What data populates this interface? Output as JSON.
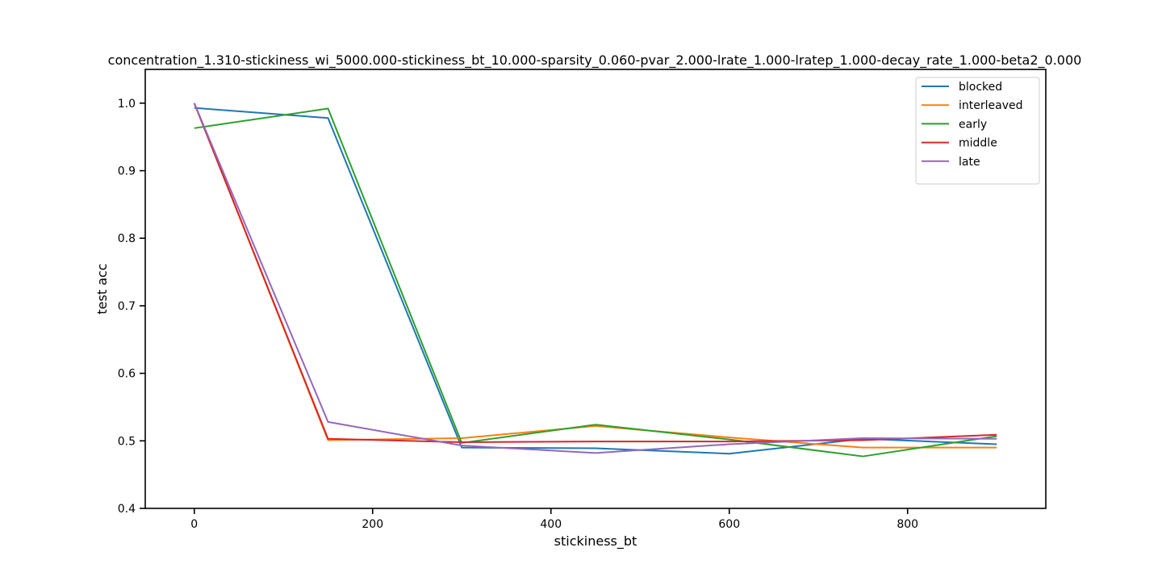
{
  "chart_data": {
    "type": "line",
    "title": "concentration_1.310-stickiness_wi_5000.000-stickiness_bt_10.000-sparsity_0.060-pvar_2.000-lrate_1.000-lratep_1.000-decay_rate_1.000-beta2_0.000",
    "xlabel": "stickiness_bt",
    "ylabel": "test acc",
    "xlim": [
      -55,
      955
    ],
    "ylim": [
      0.4,
      1.05
    ],
    "x_ticks": [
      0,
      200,
      400,
      600,
      800
    ],
    "y_ticks": [
      0.4,
      0.5,
      0.6,
      0.7,
      0.8,
      0.9,
      1.0
    ],
    "x_tick_labels": [
      "0",
      "200",
      "400",
      "600",
      "800"
    ],
    "y_tick_labels": [
      "0.4",
      "0.5",
      "0.6",
      "0.7",
      "0.8",
      "0.9",
      "1.0"
    ],
    "grid": false,
    "legend_position": "top-right",
    "x": [
      0,
      150,
      300,
      450,
      600,
      750,
      900
    ],
    "series": [
      {
        "name": "blocked",
        "color": "#1f77b4",
        "values": [
          0.993,
          0.978,
          0.49,
          0.489,
          0.481,
          0.503,
          0.495
        ]
      },
      {
        "name": "interleaved",
        "color": "#ff7f0e",
        "values": [
          1.0,
          0.501,
          0.504,
          0.522,
          0.505,
          0.49,
          0.49
        ]
      },
      {
        "name": "early",
        "color": "#2ca02c",
        "values": [
          0.963,
          0.992,
          0.497,
          0.524,
          0.502,
          0.477,
          0.507
        ]
      },
      {
        "name": "middle",
        "color": "#d62728",
        "values": [
          1.0,
          0.503,
          0.498,
          0.499,
          0.499,
          0.501,
          0.509
        ]
      },
      {
        "name": "late",
        "color": "#9467bd",
        "values": [
          1.0,
          0.528,
          0.493,
          0.482,
          0.495,
          0.504,
          0.503
        ]
      }
    ]
  }
}
